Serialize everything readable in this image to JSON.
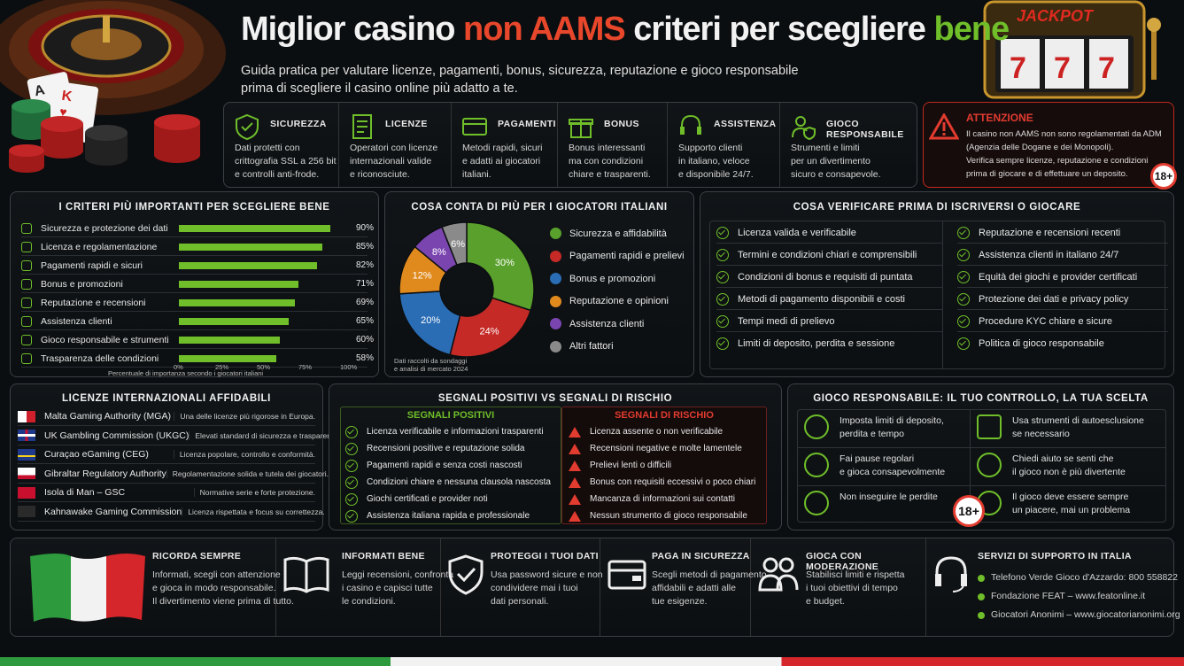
{
  "header": {
    "title_a": "Miglior casino ",
    "title_b": "non AAMS",
    "title_c": " criteri per scegliere ",
    "title_d": "bene",
    "subtitle_1": "Guida pratica per valutare licenze, pagamenti, bonus, sicurezza, reputazione e gioco responsabile",
    "subtitle_2": "prima di scegliere il casino online più adatto a te.",
    "jackpot": "JACKPOT"
  },
  "features": [
    {
      "title": "SICUREZZA",
      "text": [
        "Dati protetti con",
        "crittografia SSL a 256 bit",
        "e controlli anti-frode."
      ],
      "icon": "shield-icon"
    },
    {
      "title": "LICENZE",
      "text": [
        "Operatori con licenze",
        "internazionali valide",
        "e riconosciute."
      ],
      "icon": "document-icon"
    },
    {
      "title": "PAGAMENTI",
      "text": [
        "Metodi rapidi, sicuri",
        "e adatti ai giocatori",
        "italiani."
      ],
      "icon": "card-icon"
    },
    {
      "title": "BONUS",
      "text": [
        "Bonus interessanti",
        "ma con condizioni",
        "chiare e trasparenti."
      ],
      "icon": "gift-icon"
    },
    {
      "title": "ASSISTENZA",
      "text": [
        "Supporto clienti",
        "in italiano, veloce",
        "e disponibile 24/7."
      ],
      "icon": "headset-icon"
    },
    {
      "title": "GIOCO RESPONSABILE",
      "text": [
        "Strumenti e limiti",
        "per un divertimento",
        "sicuro e consapevole."
      ],
      "icon": "person-shield-icon"
    }
  ],
  "attention": {
    "title": "ATTENZIONE",
    "text": [
      "Il casino non AAMS non sono regolamentati da ADM",
      "(Agenzia delle Dogane e dei Monopoli).",
      "Verifica sempre licenze, reputazione e condizioni",
      "prima di giocare e di effettuare un deposito."
    ],
    "badge": "18+"
  },
  "criteria": {
    "title": "I CRITERI PIÙ IMPORTANTI PER SCEGLIERE BENE",
    "items": [
      {
        "label": "Sicurezza e protezione dei dati",
        "value": 90,
        "text": "90%"
      },
      {
        "label": "Licenza e regolamentazione",
        "value": 85,
        "text": "85%"
      },
      {
        "label": "Pagamenti rapidi e sicuri",
        "value": 82,
        "text": "82%"
      },
      {
        "label": "Bonus e promozioni",
        "value": 71,
        "text": "71%"
      },
      {
        "label": "Reputazione e recensioni",
        "value": 69,
        "text": "69%"
      },
      {
        "label": "Assistenza clienti",
        "value": 65,
        "text": "65%"
      },
      {
        "label": "Gioco responsabile e strumenti",
        "value": 60,
        "text": "60%"
      },
      {
        "label": "Trasparenza delle condizioni",
        "value": 58,
        "text": "58%"
      }
    ],
    "ticks": [
      "0%",
      "25%",
      "50%",
      "75%",
      "100%"
    ],
    "xlabel": "Percentuale di importanza secondo i giocatori italiani"
  },
  "chart_data": {
    "type": "pie",
    "title": "COSA CONTA DI PIÙ PER I GIOCATORI ITALIANI",
    "slices": [
      {
        "name": "Sicurezza e affidabilità",
        "value": 30,
        "label": "30%",
        "color": "#5aa02c"
      },
      {
        "name": "Pagamenti rapidi e prelievi",
        "value": 24,
        "label": "24%",
        "color": "#c52a26"
      },
      {
        "name": "Bonus e promozioni",
        "value": 20,
        "label": "20%",
        "color": "#2a6db5"
      },
      {
        "name": "Reputazione e opinioni",
        "value": 12,
        "label": "12%",
        "color": "#e08a1e"
      },
      {
        "name": "Assistenza clienti",
        "value": 8,
        "label": "8%",
        "color": "#7b45b0"
      },
      {
        "name": "Altri fattori",
        "value": 6,
        "label": "6%",
        "color": "#8a8a8a"
      }
    ],
    "note": [
      "Dati raccolti da sondaggi",
      "e analisi di mercato 2024"
    ]
  },
  "verify": {
    "title": "COSA VERIFICARE PRIMA DI ISCRIVERSI O GIOCARE",
    "left": [
      "Licenza valida e verificabile",
      "Termini e condizioni chiari e comprensibili",
      "Condizioni di bonus e requisiti di puntata",
      "Metodi di pagamento disponibili e costi",
      "Tempi medi di prelievo",
      "Limiti di deposito, perdita e sessione"
    ],
    "right": [
      "Reputazione e recensioni recenti",
      "Assistenza clienti in italiano 24/7",
      "Equità dei giochi e provider certificati",
      "Protezione dei dati e privacy policy",
      "Procedure KYC chiare e sicure",
      "Politica di gioco responsabile"
    ]
  },
  "licenses": {
    "title": "LICENZE INTERNAZIONALI AFFIDABILI",
    "items": [
      {
        "name": "Malta Gaming Authority (MGA)",
        "desc": "Una delle licenze più rigorose in Europa."
      },
      {
        "name": "UK Gambling Commission (UKGC)",
        "desc": "Elevati standard di sicurezza e trasparenza."
      },
      {
        "name": "Curaçao eGaming (CEG)",
        "desc": "Licenza popolare, controllo e conformità."
      },
      {
        "name": "Gibraltar Regulatory Authority",
        "desc": "Regolamentazione solida e tutela dei giocatori."
      },
      {
        "name": "Isola di Man – GSC",
        "desc": "Normative serie e forte protezione."
      },
      {
        "name": "Kahnawake Gaming Commission",
        "desc": "Licenza rispettata e focus su correttezza."
      }
    ]
  },
  "signals": {
    "title": "SEGNALI POSITIVI VS SEGNALI DI RISCHIO",
    "pos_title": "SEGNALI POSITIVI",
    "neg_title": "SEGNALI DI RISCHIO",
    "pos": [
      "Licenza verificabile e informazioni trasparenti",
      "Recensioni positive e reputazione solida",
      "Pagamenti rapidi e senza costi nascosti",
      "Condizioni chiare e nessuna clausola nascosta",
      "Giochi certificati e provider noti",
      "Assistenza italiana rapida e professionale"
    ],
    "neg": [
      "Licenza assente o non verificabile",
      "Recensioni negative e molte lamentele",
      "Prelievi lenti o difficili",
      "Bonus con requisiti eccessivi o poco chiari",
      "Mancanza di informazioni sui contatti",
      "Nessun strumento di gioco responsabile"
    ]
  },
  "responsible": {
    "title": "GIOCO RESPONSABILE: IL TUO CONTROLLO, LA TUA SCELTA",
    "items": [
      [
        "Imposta limiti di deposito,",
        "perdita e tempo"
      ],
      [
        "Usa strumenti di autoesclusione",
        "se necessario"
      ],
      [
        "Fai pause regolari",
        "e gioca consapevolmente"
      ],
      [
        "Chiedi aiuto se senti che",
        "il gioco non è più divertente"
      ],
      [
        "Non inseguire le perdite"
      ],
      [
        "Il gioco deve essere sempre",
        "un piacere, mai un problema"
      ]
    ],
    "badge": "18+"
  },
  "bottom": [
    {
      "title": "RICORDA SEMPRE",
      "text": [
        "Informati, scegli con attenzione",
        "e gioca in modo responsabile.",
        "Il divertimento viene prima di tutto."
      ]
    },
    {
      "title": "INFORMATI BENE",
      "text": [
        "Leggi recensioni, confronta",
        "i casino e capisci tutte",
        "le condizioni."
      ]
    },
    {
      "title": "PROTEGGI I TUOI DATI",
      "text": [
        "Usa password sicure e non",
        "condividere mai i tuoi",
        "dati personali."
      ]
    },
    {
      "title": "PAGA IN SICUREZZA",
      "text": [
        "Scegli metodi di pagamento",
        "affidabili e adatti alle",
        "tue esigenze."
      ]
    },
    {
      "title": "GIOCA CON MODERAZIONE",
      "text": [
        "Stabilisci limiti e rispetta",
        "i tuoi obiettivi di tempo",
        "e budget."
      ]
    },
    {
      "title": "SERVIZI DI SUPPORTO IN ITALIA",
      "text": [
        "Telefono Verde Gioco d'Azzardo: 800 558822",
        "Fondazione FEAT – www.featonline.it",
        "Giocatori Anonimi – www.giocatorianonimi.org"
      ]
    }
  ]
}
